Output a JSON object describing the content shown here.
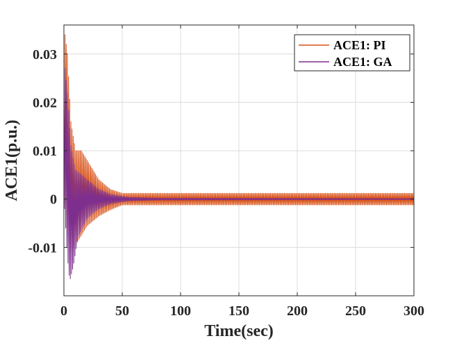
{
  "chart_data": {
    "type": "line",
    "xlabel": "Time(sec)",
    "ylabel": "ACE1(p.u.)",
    "xlim": [
      0,
      300
    ],
    "ylim": [
      -0.02,
      0.036
    ],
    "xticks": [
      "0",
      "50",
      "100",
      "150",
      "200",
      "250",
      "300"
    ],
    "xtick_values": [
      0,
      50,
      100,
      150,
      200,
      250,
      300
    ],
    "yticks": [
      "-0.01",
      "0",
      "0.01",
      "0.02",
      "0.03"
    ],
    "ytick_values": [
      -0.01,
      0,
      0.01,
      0.02,
      0.03
    ],
    "grid": true,
    "legend_position": "top-right",
    "series": [
      {
        "name": "ACE1: PI",
        "color": "#D95319",
        "envelope": {
          "upper": [
            [
              0,
              0.02
            ],
            [
              1,
              0.034
            ],
            [
              3,
              0.03
            ],
            [
              6,
              0.016
            ],
            [
              10,
              0.01
            ],
            [
              15,
              0.01
            ],
            [
              20,
              0.008
            ],
            [
              30,
              0.004
            ],
            [
              40,
              0.002
            ],
            [
              50,
              0.0012
            ],
            [
              60,
              0.0012
            ],
            [
              300,
              0.0012
            ]
          ],
          "lower": [
            [
              0,
              0.0
            ],
            [
              3,
              -0.007
            ],
            [
              6,
              -0.011
            ],
            [
              10,
              -0.0095
            ],
            [
              15,
              -0.0075
            ],
            [
              20,
              -0.0055
            ],
            [
              30,
              -0.0035
            ],
            [
              40,
              -0.0022
            ],
            [
              50,
              -0.0012
            ],
            [
              60,
              -0.0012
            ],
            [
              300,
              -0.0012
            ]
          ]
        },
        "oscillation_period": 1.0
      },
      {
        "name": "ACE1: GA",
        "color": "#7E2F8E",
        "envelope": {
          "upper": [
            [
              0,
              0.018
            ],
            [
              1,
              0.027
            ],
            [
              3,
              0.022
            ],
            [
              6,
              0.011
            ],
            [
              10,
              0.006
            ],
            [
              20,
              0.004
            ],
            [
              30,
              0.002
            ],
            [
              40,
              0.001
            ],
            [
              55,
              0.0004
            ],
            [
              80,
              0.0002
            ],
            [
              300,
              0.0001
            ]
          ],
          "lower": [
            [
              0,
              0.0
            ],
            [
              3,
              -0.012
            ],
            [
              5,
              -0.017
            ],
            [
              8,
              -0.014
            ],
            [
              12,
              -0.008
            ],
            [
              20,
              -0.004
            ],
            [
              30,
              -0.002
            ],
            [
              40,
              -0.001
            ],
            [
              55,
              -0.0004
            ],
            [
              80,
              -0.0002
            ],
            [
              300,
              -0.0001
            ]
          ]
        },
        "oscillation_period": 1.0
      }
    ]
  }
}
